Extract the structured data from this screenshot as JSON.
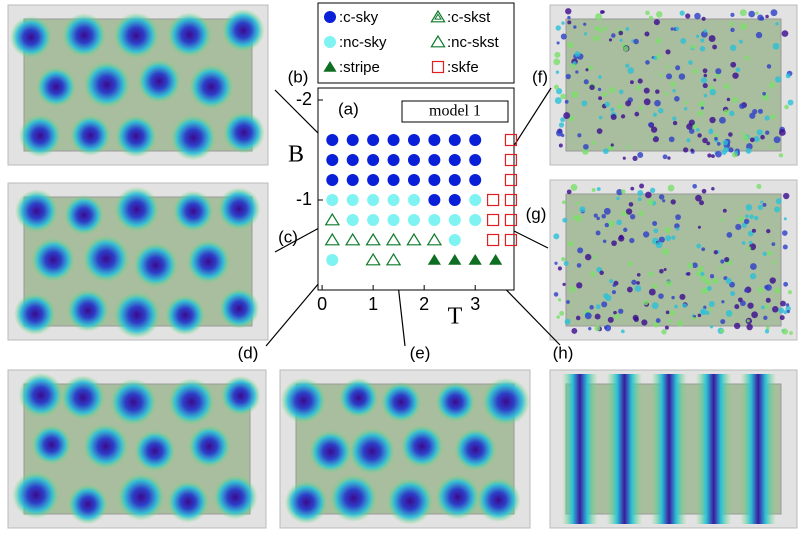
{
  "chart_data": {
    "type": "scatter",
    "xlabel": "T",
    "ylabel": "B",
    "annotations": [
      "(a)",
      "model 1"
    ],
    "xlim": [
      -0.08,
      3.76
    ],
    "xticks": [
      0,
      1,
      2,
      3
    ],
    "ylim": [
      -2.12,
      -0.1
    ],
    "yticks": [
      -2,
      -1
    ],
    "y_inverted": true,
    "series": [
      {
        "name": ":c-sky",
        "color": "#0a1fd8",
        "marker": "circle",
        "x": [
          0.2,
          0.6,
          1.0,
          1.4,
          1.8,
          2.2,
          2.6,
          3.0,
          0.2,
          0.6,
          1.0,
          1.4,
          1.8,
          2.2,
          2.6,
          3.0,
          0.2,
          0.6,
          1.0,
          1.4,
          1.8,
          2.2,
          2.6,
          3.0,
          2.2,
          2.6
        ],
        "values": [
          -1.6,
          -1.6,
          -1.6,
          -1.6,
          -1.6,
          -1.6,
          -1.6,
          -1.6,
          -1.4,
          -1.4,
          -1.4,
          -1.4,
          -1.4,
          -1.4,
          -1.4,
          -1.4,
          -1.2,
          -1.2,
          -1.2,
          -1.2,
          -1.2,
          -1.2,
          -1.2,
          -1.2,
          -1.0,
          -1.0
        ]
      },
      {
        "name": ":c-skst",
        "color": "#0e7a2a",
        "marker": "triangle-double",
        "x": [],
        "values": []
      },
      {
        "name": ":nc-sky",
        "color": "#7ff2f2",
        "marker": "circle",
        "x": [
          0.2,
          0.6,
          1.0,
          1.4,
          1.8,
          3.0,
          0.6,
          1.0,
          1.4,
          1.8,
          2.2,
          2.6,
          3.0,
          2.6,
          0.2
        ],
        "values": [
          -1.0,
          -1.0,
          -1.0,
          -1.0,
          -1.0,
          -1.0,
          -0.8,
          -0.8,
          -0.8,
          -0.8,
          -0.8,
          -0.8,
          -0.8,
          -0.6,
          -0.4
        ]
      },
      {
        "name": ":nc-skst",
        "color": "#0e7a2a",
        "marker": "triangle-open",
        "x": [
          0.2,
          0.2,
          0.6,
          1.0,
          1.4,
          1.8,
          2.2,
          1.0,
          1.4
        ],
        "values": [
          -0.8,
          -0.6,
          -0.6,
          -0.6,
          -0.6,
          -0.6,
          -0.6,
          -0.4,
          -0.4
        ]
      },
      {
        "name": ":stripe",
        "color": "#0e6e22",
        "marker": "triangle",
        "x": [
          2.2,
          2.6,
          3.0,
          3.4
        ],
        "values": [
          -0.4,
          -0.4,
          -0.4,
          -0.4
        ]
      },
      {
        "name": ":skfe",
        "color": "#e02020",
        "marker": "square-open",
        "x": [
          3.7,
          3.7,
          3.7,
          3.35,
          3.7,
          3.35,
          3.7,
          3.35,
          3.7
        ],
        "values": [
          -1.6,
          -1.4,
          -1.2,
          -1.0,
          -1.0,
          -0.8,
          -0.8,
          -0.6,
          -0.6
        ]
      }
    ]
  },
  "panels": [
    {
      "label": "(b)"
    },
    {
      "label": "(c)"
    },
    {
      "label": "(d)"
    },
    {
      "label": "(e)"
    },
    {
      "label": "(f)"
    },
    {
      "label": "(g)"
    },
    {
      "label": "(h)"
    }
  ]
}
